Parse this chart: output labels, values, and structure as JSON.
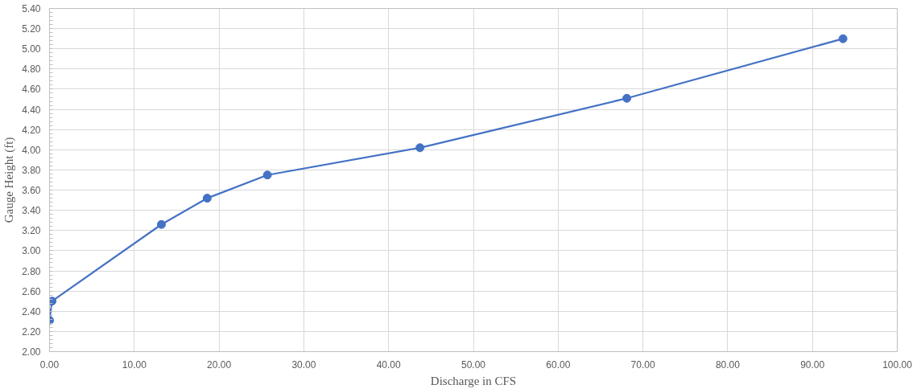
{
  "chart_data": {
    "type": "line",
    "xlabel": "Discharge in CFS",
    "ylabel": "Gauge Height (ft)",
    "x": [
      0.0,
      0.3,
      13.2,
      18.6,
      25.7,
      43.7,
      68.1,
      93.6
    ],
    "series": [
      {
        "color": "#4472c4",
        "values": [
          2.31,
          2.5,
          3.26,
          3.52,
          3.75,
          4.02,
          4.51,
          5.1
        ]
      }
    ],
    "marker": "circle",
    "line_style": "solid",
    "grid": true,
    "xlim": [
      0,
      100
    ],
    "ylim": [
      2.0,
      5.4
    ],
    "xticks": [
      {
        "value": 0,
        "label": "0.00"
      },
      {
        "value": 10,
        "label": "10.00"
      },
      {
        "value": 20,
        "label": "20.00"
      },
      {
        "value": 30,
        "label": "30.00"
      },
      {
        "value": 40,
        "label": "40.00"
      },
      {
        "value": 50,
        "label": "50.00"
      },
      {
        "value": 60,
        "label": "60.00"
      },
      {
        "value": 70,
        "label": "70.00"
      },
      {
        "value": 80,
        "label": "80.00"
      },
      {
        "value": 90,
        "label": "90.00"
      },
      {
        "value": 100,
        "label": "100.00"
      }
    ],
    "yticks": [
      {
        "value": 2.0,
        "label": "2.00"
      },
      {
        "value": 2.2,
        "label": "2.20"
      },
      {
        "value": 2.4,
        "label": "2.40"
      },
      {
        "value": 2.6,
        "label": "2.60"
      },
      {
        "value": 2.8,
        "label": "2.80"
      },
      {
        "value": 3.0,
        "label": "3.00"
      },
      {
        "value": 3.2,
        "label": "3.20"
      },
      {
        "value": 3.4,
        "label": "3.40"
      },
      {
        "value": 3.6,
        "label": "3.60"
      },
      {
        "value": 3.8,
        "label": "3.80"
      },
      {
        "value": 4.0,
        "label": "4.00"
      },
      {
        "value": 4.2,
        "label": "4.20"
      },
      {
        "value": 4.4,
        "label": "4.40"
      },
      {
        "value": 4.6,
        "label": "4.60"
      },
      {
        "value": 4.8,
        "label": "4.80"
      },
      {
        "value": 5.0,
        "label": "5.00"
      },
      {
        "value": 5.2,
        "label": "5.20"
      },
      {
        "value": 5.4,
        "label": "5.40"
      }
    ]
  }
}
